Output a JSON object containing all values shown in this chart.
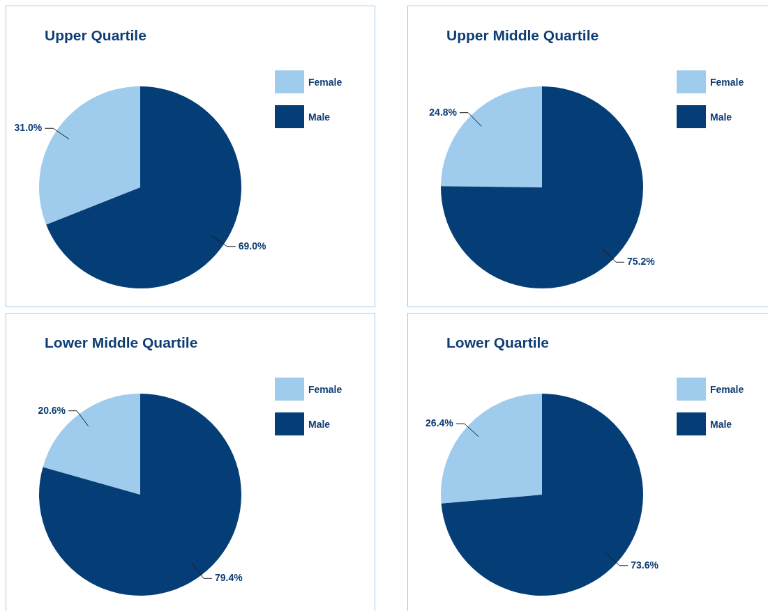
{
  "chart_data": [
    {
      "type": "pie",
      "title": "Upper Quartile",
      "categories": [
        "Female",
        "Male"
      ],
      "values": [
        31.0,
        69.0
      ],
      "colors": [
        "#9fcbed",
        "#053e76"
      ],
      "value_labels": [
        "31.0%",
        "69.0%"
      ],
      "legend": "top right"
    },
    {
      "type": "pie",
      "title": "Upper Middle Quartile",
      "categories": [
        "Female",
        "Male"
      ],
      "values": [
        24.8,
        75.2
      ],
      "colors": [
        "#9fcbed",
        "#053e76"
      ],
      "value_labels": [
        "24.8%",
        "75.2%"
      ],
      "legend": "top right"
    },
    {
      "type": "pie",
      "title": "Lower Middle Quartile",
      "categories": [
        "Female",
        "Male"
      ],
      "values": [
        20.6,
        79.4
      ],
      "colors": [
        "#9fcbed",
        "#053e76"
      ],
      "value_labels": [
        "20.6%",
        "79.4%"
      ],
      "legend": "top right"
    },
    {
      "type": "pie",
      "title": "Lower Quartile",
      "categories": [
        "Female",
        "Male"
      ],
      "values": [
        26.4,
        73.6
      ],
      "colors": [
        "#9fcbed",
        "#053e76"
      ],
      "value_labels": [
        "26.4%",
        "73.6%"
      ],
      "legend": "top right"
    }
  ]
}
